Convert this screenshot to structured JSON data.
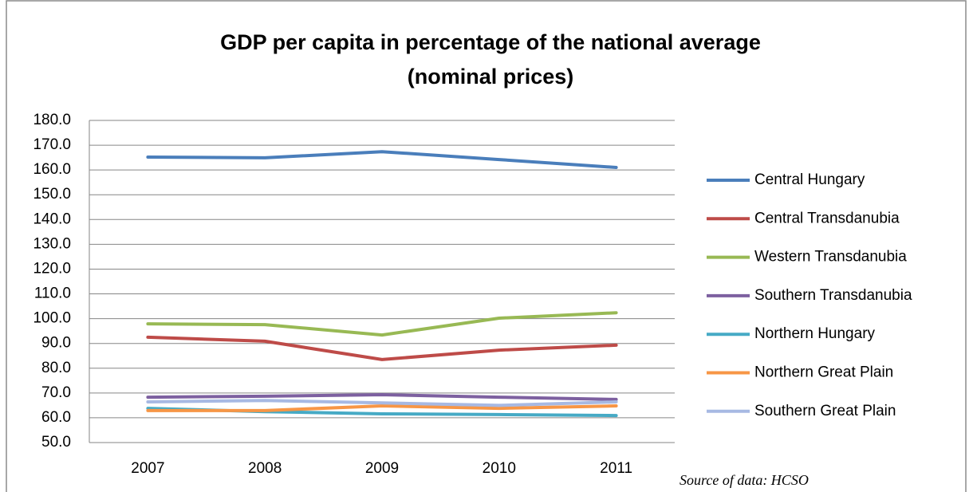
{
  "chart_data": {
    "type": "line",
    "title": [
      "GDP per capita in percentage of the national average",
      "(nominal prices)"
    ],
    "annotation": "Source of data: HCSO",
    "categories": [
      "2007",
      "2008",
      "2009",
      "2010",
      "2011"
    ],
    "series": [
      {
        "name": "Central Hungary",
        "color": "#4a7ebb",
        "values": [
          165.2,
          164.9,
          167.4,
          164.2,
          161.0
        ]
      },
      {
        "name": "Central Transdanubia",
        "color": "#be4b48",
        "values": [
          92.5,
          90.9,
          83.5,
          87.3,
          89.3
        ]
      },
      {
        "name": "Western Transdanubia",
        "color": "#98b954",
        "values": [
          97.9,
          97.6,
          93.4,
          100.2,
          102.4
        ]
      },
      {
        "name": "Southern Transdanubia",
        "color": "#7d60a0",
        "values": [
          68.3,
          68.7,
          69.3,
          68.3,
          67.4
        ]
      },
      {
        "name": "Northern Hungary",
        "color": "#46aac5",
        "values": [
          63.8,
          62.5,
          61.6,
          61.3,
          60.9
        ]
      },
      {
        "name": "Northern Great Plain",
        "color": "#f79646",
        "values": [
          62.9,
          62.9,
          64.8,
          63.8,
          64.8
        ]
      },
      {
        "name": "Southern Great Plain",
        "color": "#a7b9e3",
        "values": [
          66.4,
          67.0,
          66.0,
          65.0,
          66.4
        ]
      }
    ],
    "ylim": [
      50,
      180
    ],
    "yticks": [
      {
        "value": 50,
        "label": "50.0"
      },
      {
        "value": 60,
        "label": "60.0"
      },
      {
        "value": 70,
        "label": "70.0"
      },
      {
        "value": 80,
        "label": "80.0"
      },
      {
        "value": 90,
        "label": "90.0"
      },
      {
        "value": 100,
        "label": "100.0"
      },
      {
        "value": 110,
        "label": "110.0"
      },
      {
        "value": 120,
        "label": "120.0"
      },
      {
        "value": 130,
        "label": "130.0"
      },
      {
        "value": 140,
        "label": "140.0"
      },
      {
        "value": 150,
        "label": "150.0"
      },
      {
        "value": 160,
        "label": "160.0"
      },
      {
        "value": 170,
        "label": "170.0"
      },
      {
        "value": 180,
        "label": "180.0"
      }
    ],
    "grid": true,
    "legend": "right"
  }
}
